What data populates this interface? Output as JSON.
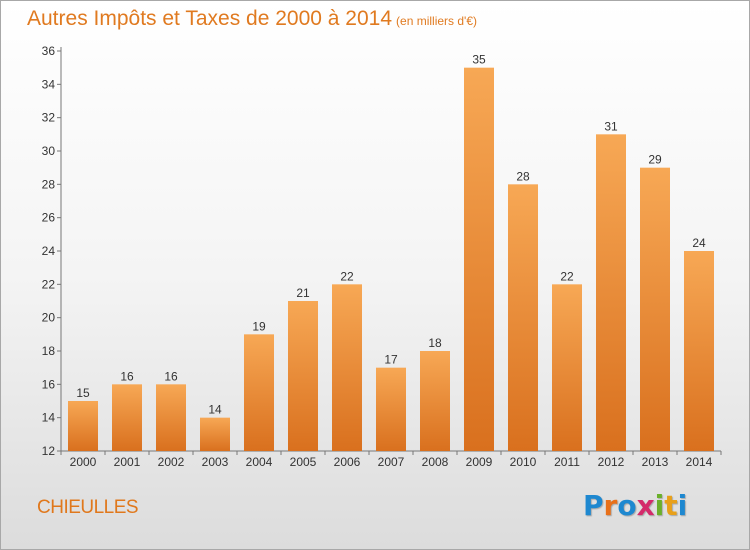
{
  "title": "Autres Impôts et Taxes de 2000 à 2014",
  "unit": "(en milliers d'€)",
  "commune": "CHIEULLES",
  "logo": {
    "text": "Proxiti",
    "letters": [
      {
        "char": "P",
        "color": "#1e88d0"
      },
      {
        "char": "r",
        "color": "#e8701a"
      },
      {
        "char": "o",
        "color": "#1e88d0"
      },
      {
        "char": "x",
        "color": "#d42a6a"
      },
      {
        "char": "i",
        "color": "#6ab02a"
      },
      {
        "char": "t",
        "color": "#e8a01a"
      },
      {
        "char": "i",
        "color": "#1e88d0"
      }
    ]
  },
  "colors": {
    "bar_light": "#f7a855",
    "bar_dark": "#d9701e",
    "title": "#e07a20",
    "axis": "#777777",
    "label": "#333333"
  },
  "chart_data": {
    "type": "bar",
    "categories": [
      "2000",
      "2001",
      "2002",
      "2003",
      "2004",
      "2005",
      "2006",
      "2007",
      "2008",
      "2009",
      "2010",
      "2011",
      "2012",
      "2013",
      "2014"
    ],
    "values": [
      15,
      16,
      16,
      14,
      19,
      21,
      22,
      17,
      18,
      35,
      28,
      22,
      31,
      29,
      24
    ],
    "yticks": [
      12,
      14,
      16,
      18,
      20,
      22,
      24,
      26,
      28,
      30,
      32,
      34,
      36
    ],
    "ylim": [
      12,
      36
    ],
    "grid": false,
    "legend": "none"
  }
}
